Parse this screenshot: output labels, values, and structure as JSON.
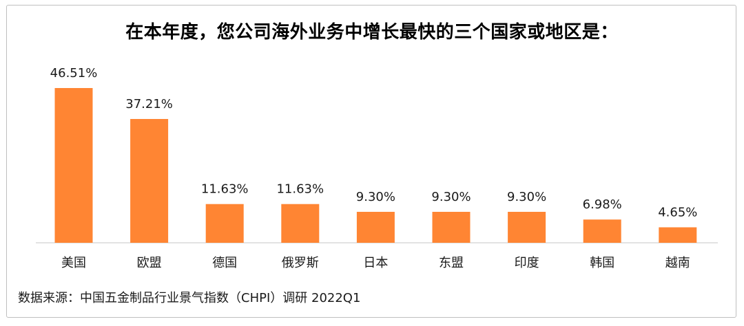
{
  "chart_data": {
    "type": "bar",
    "title": "在本年度，您公司海外业务中增长最快的三个国家或地区是：",
    "categories": [
      "美国",
      "欧盟",
      "德国",
      "俄罗斯",
      "日本",
      "东盟",
      "印度",
      "韩国",
      "越南"
    ],
    "values": [
      46.51,
      37.21,
      11.63,
      11.63,
      9.3,
      9.3,
      9.3,
      6.98,
      4.65
    ],
    "data_labels": [
      "46.51%",
      "37.21%",
      "11.63%",
      "11.63%",
      "9.30%",
      "9.30%",
      "9.30%",
      "6.98%",
      "4.65%"
    ],
    "unit": "%",
    "ylim": [
      0,
      46.51
    ],
    "grid": false,
    "legend": "none",
    "bar_color": "#FF8533"
  },
  "source": "数据来源：中国五金制品行业景气指数（CHPI）调研 2022Q1"
}
